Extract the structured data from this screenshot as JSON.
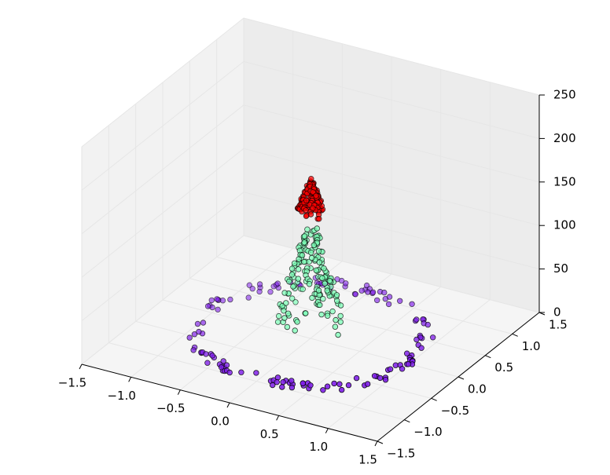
{
  "chart_data": {
    "type": "scatter3d",
    "title": "",
    "xlabel": "",
    "ylabel": "",
    "zlabel": "",
    "xlim": [
      -1.5,
      1.5
    ],
    "ylim": [
      -1.5,
      1.5
    ],
    "zlim": [
      0,
      250
    ],
    "x_ticks": [
      "−1.5",
      "−1.0",
      "−0.5",
      "0.0",
      "0.5",
      "1.0",
      "1.5"
    ],
    "y_ticks": [
      "−1.5",
      "−1.0",
      "−0.5",
      "0.0",
      "0.5",
      "1.0",
      "1.5"
    ],
    "z_ticks": [
      "0",
      "50",
      "100",
      "150",
      "200",
      "250"
    ],
    "grid": true,
    "pane_color": "#f2f2f2",
    "grid_color": "#e6e6e6",
    "series": [
      {
        "shape": "ring",
        "color": "#7f1fe8",
        "edge": "#000000",
        "radius_range": [
          0.95,
          1.1
        ],
        "z_range": [
          0,
          10
        ],
        "count": 140
      },
      {
        "shape": "cone-band",
        "color": "#7effb8",
        "edge": "#000000",
        "radius_range": [
          0.05,
          0.3
        ],
        "z_range": [
          20,
          120
        ],
        "count": 170
      },
      {
        "shape": "peak",
        "color": "#ff0000",
        "edge": "#000000",
        "radius_range": [
          0.0,
          0.12
        ],
        "z_range": [
          150,
          190
        ],
        "count": 140
      }
    ]
  }
}
